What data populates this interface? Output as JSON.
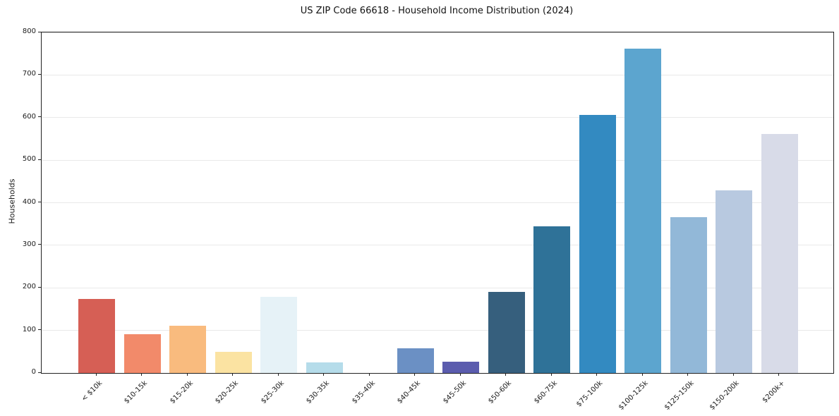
{
  "chart_data": {
    "type": "bar",
    "title": "US ZIP Code 66618 - Household Income Distribution (2024)",
    "xlabel": "",
    "ylabel": "Households",
    "categories": [
      "< $10k",
      "$10-15k",
      "$15-20k",
      "$20-25k",
      "$25-30k",
      "$30-35k",
      "$35-40k",
      "$40-45k",
      "$45-50k",
      "$50-60k",
      "$60-75k",
      "$75-100k",
      "$100-125k",
      "$125-150k",
      "$150-200k",
      "$200k+"
    ],
    "values": [
      174,
      91,
      111,
      50,
      179,
      25,
      0,
      58,
      26,
      190,
      344,
      606,
      762,
      366,
      429,
      561
    ],
    "bar_colors": [
      "#d65f55",
      "#f28a6a",
      "#f9bb7e",
      "#fbe3a2",
      "#e6f2f7",
      "#b5dcea",
      null,
      "#6b90c4",
      "#5b5cae",
      "#365f7d",
      "#2f7298",
      "#338ac1",
      "#5ca5cf",
      "#92b8d8",
      "#b8c9e0",
      "#d8dbe8"
    ],
    "ylim": [
      0,
      800
    ],
    "yticks": [
      0,
      100,
      200,
      300,
      400,
      500,
      600,
      700,
      800
    ],
    "grid": "horizontal",
    "legend": "none"
  },
  "colors": {
    "background": "#ffffff",
    "gridline": "#e9e9e9",
    "spine": "#222222",
    "tick_label": "#1a1a1a",
    "title": "#111111"
  }
}
